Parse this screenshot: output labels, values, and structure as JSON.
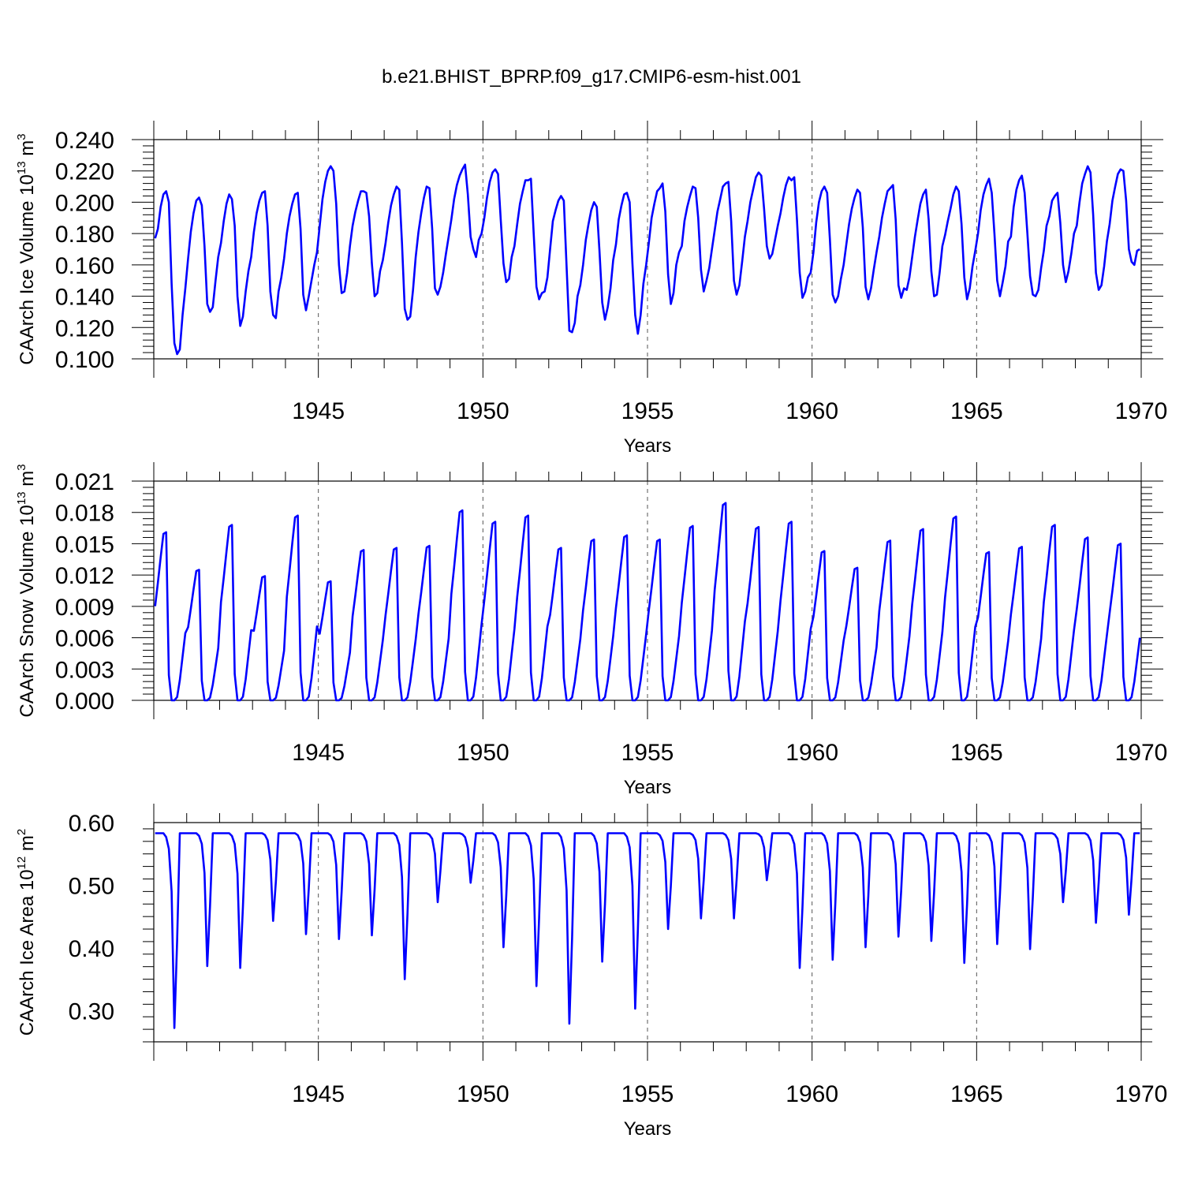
{
  "title": "b.e21.BHIST_BPRP.f09_g17.CMIP6-esm-hist.001",
  "series_color": "#0000ff",
  "chart_data": [
    {
      "type": "line",
      "ylabel_main": "CAArch Ice Volume 10",
      "ylabel_exp": "13",
      "ylabel_unit": " m",
      "ylabel_unit_exp": "3",
      "xlabel": "Years",
      "xlim": [
        1940.0,
        1970.0
      ],
      "xticks": [
        "1945",
        "1950",
        "1955",
        "1960",
        "1965",
        "1970"
      ],
      "ylim": [
        0.1,
        0.24
      ],
      "yticks": [
        "0.100",
        "0.120",
        "0.140",
        "0.160",
        "0.180",
        "0.200",
        "0.220",
        "0.240"
      ],
      "annual_cycles": [
        [
          0.177,
          0.183,
          0.197,
          0.205,
          0.207,
          0.2,
          0.148,
          0.11,
          0.103,
          0.106,
          0.128,
          0.145
        ],
        [
          0.164,
          0.181,
          0.193,
          0.201,
          0.203,
          0.198,
          0.172,
          0.135,
          0.13,
          0.133,
          0.15,
          0.165
        ],
        [
          0.174,
          0.188,
          0.199,
          0.205,
          0.202,
          0.185,
          0.14,
          0.121,
          0.127,
          0.143,
          0.156,
          0.165
        ],
        [
          0.181,
          0.193,
          0.201,
          0.206,
          0.207,
          0.185,
          0.143,
          0.128,
          0.126,
          0.143,
          0.152,
          0.164
        ],
        [
          0.18,
          0.191,
          0.199,
          0.205,
          0.206,
          0.183,
          0.141,
          0.131,
          0.14,
          0.15,
          0.16,
          0.168
        ],
        [
          0.185,
          0.202,
          0.213,
          0.22,
          0.223,
          0.22,
          0.199,
          0.16,
          0.142,
          0.143,
          0.155,
          0.172
        ],
        [
          0.185,
          0.194,
          0.201,
          0.207,
          0.207,
          0.206,
          0.191,
          0.161,
          0.14,
          0.142,
          0.156,
          0.163
        ],
        [
          0.174,
          0.187,
          0.198,
          0.205,
          0.21,
          0.208,
          0.174,
          0.132,
          0.125,
          0.127,
          0.144,
          0.165
        ],
        [
          0.181,
          0.193,
          0.203,
          0.21,
          0.209,
          0.183,
          0.145,
          0.141,
          0.146,
          0.155,
          0.167,
          0.178
        ],
        [
          0.189,
          0.202,
          0.211,
          0.217,
          0.221,
          0.224,
          0.205,
          0.178,
          0.17,
          0.165,
          0.176,
          0.18
        ],
        [
          0.19,
          0.203,
          0.213,
          0.219,
          0.221,
          0.218,
          0.189,
          0.161,
          0.149,
          0.151,
          0.165,
          0.172
        ],
        [
          0.186,
          0.199,
          0.207,
          0.214,
          0.214,
          0.215,
          0.18,
          0.146,
          0.138,
          0.142,
          0.143,
          0.152
        ],
        [
          0.17,
          0.188,
          0.195,
          0.201,
          0.204,
          0.201,
          0.159,
          0.118,
          0.117,
          0.123,
          0.14,
          0.147
        ],
        [
          0.16,
          0.176,
          0.186,
          0.195,
          0.2,
          0.197,
          0.169,
          0.136,
          0.125,
          0.133,
          0.145,
          0.163
        ],
        [
          0.173,
          0.189,
          0.198,
          0.205,
          0.206,
          0.2,
          0.161,
          0.128,
          0.116,
          0.128,
          0.148,
          0.16
        ],
        [
          0.174,
          0.19,
          0.199,
          0.207,
          0.209,
          0.212,
          0.194,
          0.154,
          0.135,
          0.142,
          0.16,
          0.168
        ],
        [
          0.172,
          0.188,
          0.197,
          0.204,
          0.21,
          0.209,
          0.19,
          0.157,
          0.143,
          0.15,
          0.158,
          0.17
        ],
        [
          0.182,
          0.194,
          0.202,
          0.21,
          0.212,
          0.213,
          0.188,
          0.15,
          0.141,
          0.147,
          0.162,
          0.178
        ],
        [
          0.188,
          0.2,
          0.208,
          0.216,
          0.219,
          0.217,
          0.196,
          0.172,
          0.164,
          0.167,
          0.176,
          0.185
        ],
        [
          0.193,
          0.203,
          0.211,
          0.216,
          0.214,
          0.216,
          0.189,
          0.155,
          0.139,
          0.143,
          0.152,
          0.155
        ],
        [
          0.168,
          0.187,
          0.2,
          0.207,
          0.21,
          0.206,
          0.176,
          0.141,
          0.136,
          0.14,
          0.151,
          0.16
        ],
        [
          0.173,
          0.186,
          0.196,
          0.203,
          0.208,
          0.206,
          0.184,
          0.146,
          0.138,
          0.145,
          0.157,
          0.168
        ],
        [
          0.178,
          0.19,
          0.199,
          0.207,
          0.209,
          0.211,
          0.189,
          0.147,
          0.139,
          0.145,
          0.144,
          0.152
        ],
        [
          0.165,
          0.178,
          0.189,
          0.199,
          0.205,
          0.208,
          0.189,
          0.156,
          0.14,
          0.141,
          0.155,
          0.172
        ],
        [
          0.179,
          0.188,
          0.196,
          0.205,
          0.21,
          0.207,
          0.186,
          0.152,
          0.138,
          0.145,
          0.159,
          0.169
        ],
        [
          0.18,
          0.195,
          0.205,
          0.211,
          0.215,
          0.206,
          0.18,
          0.15,
          0.14,
          0.149,
          0.159,
          0.175
        ],
        [
          0.178,
          0.197,
          0.208,
          0.214,
          0.217,
          0.206,
          0.18,
          0.153,
          0.141,
          0.14,
          0.144,
          0.158
        ],
        [
          0.169,
          0.185,
          0.191,
          0.201,
          0.204,
          0.206,
          0.187,
          0.16,
          0.149,
          0.156,
          0.167,
          0.18
        ],
        [
          0.185,
          0.2,
          0.212,
          0.218,
          0.223,
          0.219,
          0.192,
          0.155,
          0.144,
          0.147,
          0.159,
          0.175
        ],
        [
          0.186,
          0.201,
          0.21,
          0.218,
          0.221,
          0.22,
          0.201,
          0.17,
          0.162,
          0.16,
          0.169,
          0.17
        ]
      ]
    },
    {
      "type": "line",
      "ylabel_main": "CAArch Snow Volume 10",
      "ylabel_exp": "13",
      "ylabel_unit": " m",
      "ylabel_unit_exp": "3",
      "xlabel": "Years",
      "xlim": [
        1940.0,
        1970.0
      ],
      "xticks": [
        "1945",
        "1950",
        "1955",
        "1960",
        "1965",
        "1970"
      ],
      "ylim": [
        0.0,
        0.021
      ],
      "yticks": [
        "0.000",
        "0.003",
        "0.006",
        "0.009",
        "0.012",
        "0.015",
        "0.018",
        "0.021"
      ],
      "peaks": [
        0.0161,
        0.0125,
        0.0168,
        0.0119,
        0.0177,
        0.0114,
        0.0144,
        0.0146,
        0.0148,
        0.0182,
        0.0171,
        0.0177,
        0.0146,
        0.0154,
        0.0158,
        0.0154,
        0.0167,
        0.0189,
        0.0166,
        0.0171,
        0.0143,
        0.0127,
        0.0153,
        0.0164,
        0.0176,
        0.0142,
        0.0147,
        0.0168,
        0.0156,
        0.015
      ]
    },
    {
      "type": "line",
      "ylabel_main": "CAArch Ice Area 10",
      "ylabel_exp": "12",
      "ylabel_unit": " m",
      "ylabel_unit_exp": "2",
      "xlabel": "Years",
      "xlim": [
        1940.0,
        1970.0
      ],
      "xticks": [
        "1945",
        "1950",
        "1955",
        "1960",
        "1965",
        "1970"
      ],
      "ylim": [
        0.25,
        0.6
      ],
      "yticks": [
        "0.30",
        "0.40",
        "0.50",
        "0.60"
      ],
      "full_cover": 0.583,
      "minima": [
        0.272,
        0.371,
        0.368,
        0.443,
        0.422,
        0.414,
        0.42,
        0.35,
        0.473,
        0.504,
        0.401,
        0.339,
        0.279,
        0.378,
        0.303,
        0.43,
        0.447,
        0.447,
        0.508,
        0.368,
        0.381,
        0.401,
        0.418,
        0.411,
        0.376,
        0.406,
        0.398,
        0.473,
        0.44,
        0.453
      ]
    }
  ]
}
